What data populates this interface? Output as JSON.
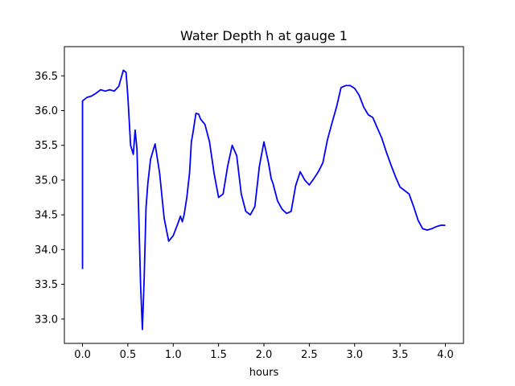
{
  "chart_data": {
    "type": "line",
    "title": "Water Depth h at gauge 1",
    "xlabel": "hours",
    "ylabel": "",
    "xlim": [
      -0.2,
      4.2
    ],
    "ylim": [
      32.65,
      36.92
    ],
    "xticks": [
      0.0,
      0.5,
      1.0,
      1.5,
      2.0,
      2.5,
      3.0,
      3.5,
      4.0
    ],
    "xtick_labels": [
      "0.0",
      "0.5",
      "1.0",
      "1.5",
      "2.0",
      "2.5",
      "3.0",
      "3.5",
      "4.0"
    ],
    "yticks": [
      33.0,
      33.5,
      34.0,
      34.5,
      35.0,
      35.5,
      36.0,
      36.5
    ],
    "ytick_labels": [
      "33.0",
      "33.5",
      "34.0",
      "34.5",
      "35.0",
      "35.5",
      "36.0",
      "36.5"
    ],
    "grid": false,
    "series": [
      {
        "color": "#0000ff",
        "x": [
          0.0,
          0.0,
          0.0,
          0.05,
          0.1,
          0.15,
          0.2,
          0.25,
          0.3,
          0.35,
          0.4,
          0.45,
          0.48,
          0.5,
          0.53,
          0.56,
          0.58,
          0.6,
          0.62,
          0.64,
          0.66,
          0.68,
          0.7,
          0.72,
          0.75,
          0.8,
          0.85,
          0.9,
          0.95,
          1.0,
          1.05,
          1.08,
          1.1,
          1.12,
          1.15,
          1.18,
          1.2,
          1.22,
          1.25,
          1.28,
          1.3,
          1.35,
          1.4,
          1.45,
          1.5,
          1.55,
          1.6,
          1.65,
          1.7,
          1.75,
          1.8,
          1.85,
          1.9,
          1.95,
          2.0,
          2.05,
          2.08,
          2.1,
          2.15,
          2.2,
          2.25,
          2.3,
          2.35,
          2.4,
          2.45,
          2.5,
          2.55,
          2.6,
          2.65,
          2.7,
          2.75,
          2.8,
          2.85,
          2.9,
          2.95,
          3.0,
          3.02,
          3.05,
          3.1,
          3.15,
          3.2,
          3.25,
          3.3,
          3.35,
          3.4,
          3.45,
          3.5,
          3.55,
          3.6,
          3.65,
          3.7,
          3.75,
          3.8,
          3.85,
          3.9,
          3.95,
          4.0
        ],
        "y": [
          33.72,
          35.1,
          36.14,
          36.19,
          36.21,
          36.25,
          36.3,
          36.28,
          36.3,
          36.28,
          36.35,
          36.58,
          36.55,
          36.2,
          35.5,
          35.37,
          35.72,
          35.45,
          34.5,
          33.5,
          32.85,
          33.6,
          34.6,
          34.95,
          35.3,
          35.52,
          35.1,
          34.45,
          34.12,
          34.2,
          34.37,
          34.48,
          34.4,
          34.5,
          34.75,
          35.1,
          35.55,
          35.7,
          35.96,
          35.95,
          35.88,
          35.8,
          35.55,
          35.1,
          34.75,
          34.8,
          35.2,
          35.5,
          35.35,
          34.8,
          34.55,
          34.5,
          34.62,
          35.2,
          35.55,
          35.25,
          35.02,
          34.95,
          34.7,
          34.58,
          34.52,
          34.55,
          34.92,
          35.12,
          35.0,
          34.93,
          35.02,
          35.12,
          35.25,
          35.58,
          35.82,
          36.05,
          36.33,
          36.36,
          36.36,
          36.32,
          36.28,
          36.22,
          36.05,
          35.94,
          35.9,
          35.75,
          35.6,
          35.4,
          35.22,
          35.05,
          34.9,
          34.85,
          34.8,
          34.62,
          34.42,
          34.3,
          34.28,
          34.3,
          34.33,
          34.35,
          34.35
        ]
      }
    ]
  }
}
